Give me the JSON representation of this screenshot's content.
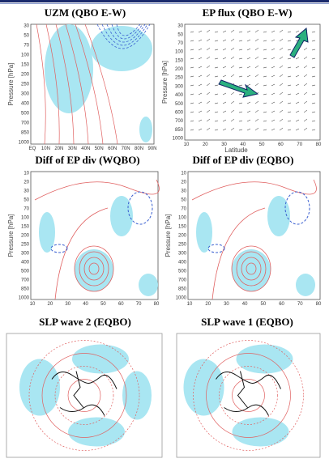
{
  "panels": [
    {
      "title": "UZM (QBO E-W)",
      "y_label": "Pressure [hPa]",
      "yticks": [
        "30",
        "50",
        "70",
        "100",
        "150",
        "200",
        "250",
        "300",
        "400",
        "500",
        "700",
        "850",
        "1000"
      ],
      "xticks": [
        "EQ",
        "10N",
        "20N",
        "30N",
        "40N",
        "50N",
        "60N",
        "70N",
        "80N",
        "90N"
      ]
    },
    {
      "title": "EP flux (QBO E-W)",
      "y_label": "Pressure [hPa]",
      "x_label": "Latitude",
      "yticks": [
        "30",
        "50",
        "70",
        "100",
        "150",
        "200",
        "250",
        "300",
        "400",
        "500",
        "600",
        "700",
        "850",
        "1000"
      ],
      "xticks": [
        "10",
        "20",
        "30",
        "40",
        "50",
        "60",
        "70",
        "80"
      ]
    },
    {
      "title": "Diff of EP div (WQBO)",
      "y_label": "Pressure [hPa]",
      "yticks": [
        "10",
        "20",
        "30",
        "50",
        "70",
        "100",
        "150",
        "200",
        "250",
        "300",
        "400",
        "500",
        "700",
        "850",
        "1000"
      ],
      "xticks": [
        "10",
        "20",
        "30",
        "40",
        "50",
        "60",
        "70",
        "80"
      ]
    },
    {
      "title": "Diff of EP div (EQBO)",
      "y_label": "Pressure [hPa]",
      "yticks": [
        "10",
        "20",
        "30",
        "50",
        "70",
        "100",
        "150",
        "200",
        "250",
        "300",
        "400",
        "500",
        "700",
        "850",
        "1000"
      ],
      "xticks": [
        "10",
        "20",
        "30",
        "40",
        "50",
        "60",
        "70",
        "80"
      ]
    },
    {
      "title": "SLP  wave 2 (EQBO)"
    },
    {
      "title": "SLP wave 1 (EQBO)"
    }
  ]
}
